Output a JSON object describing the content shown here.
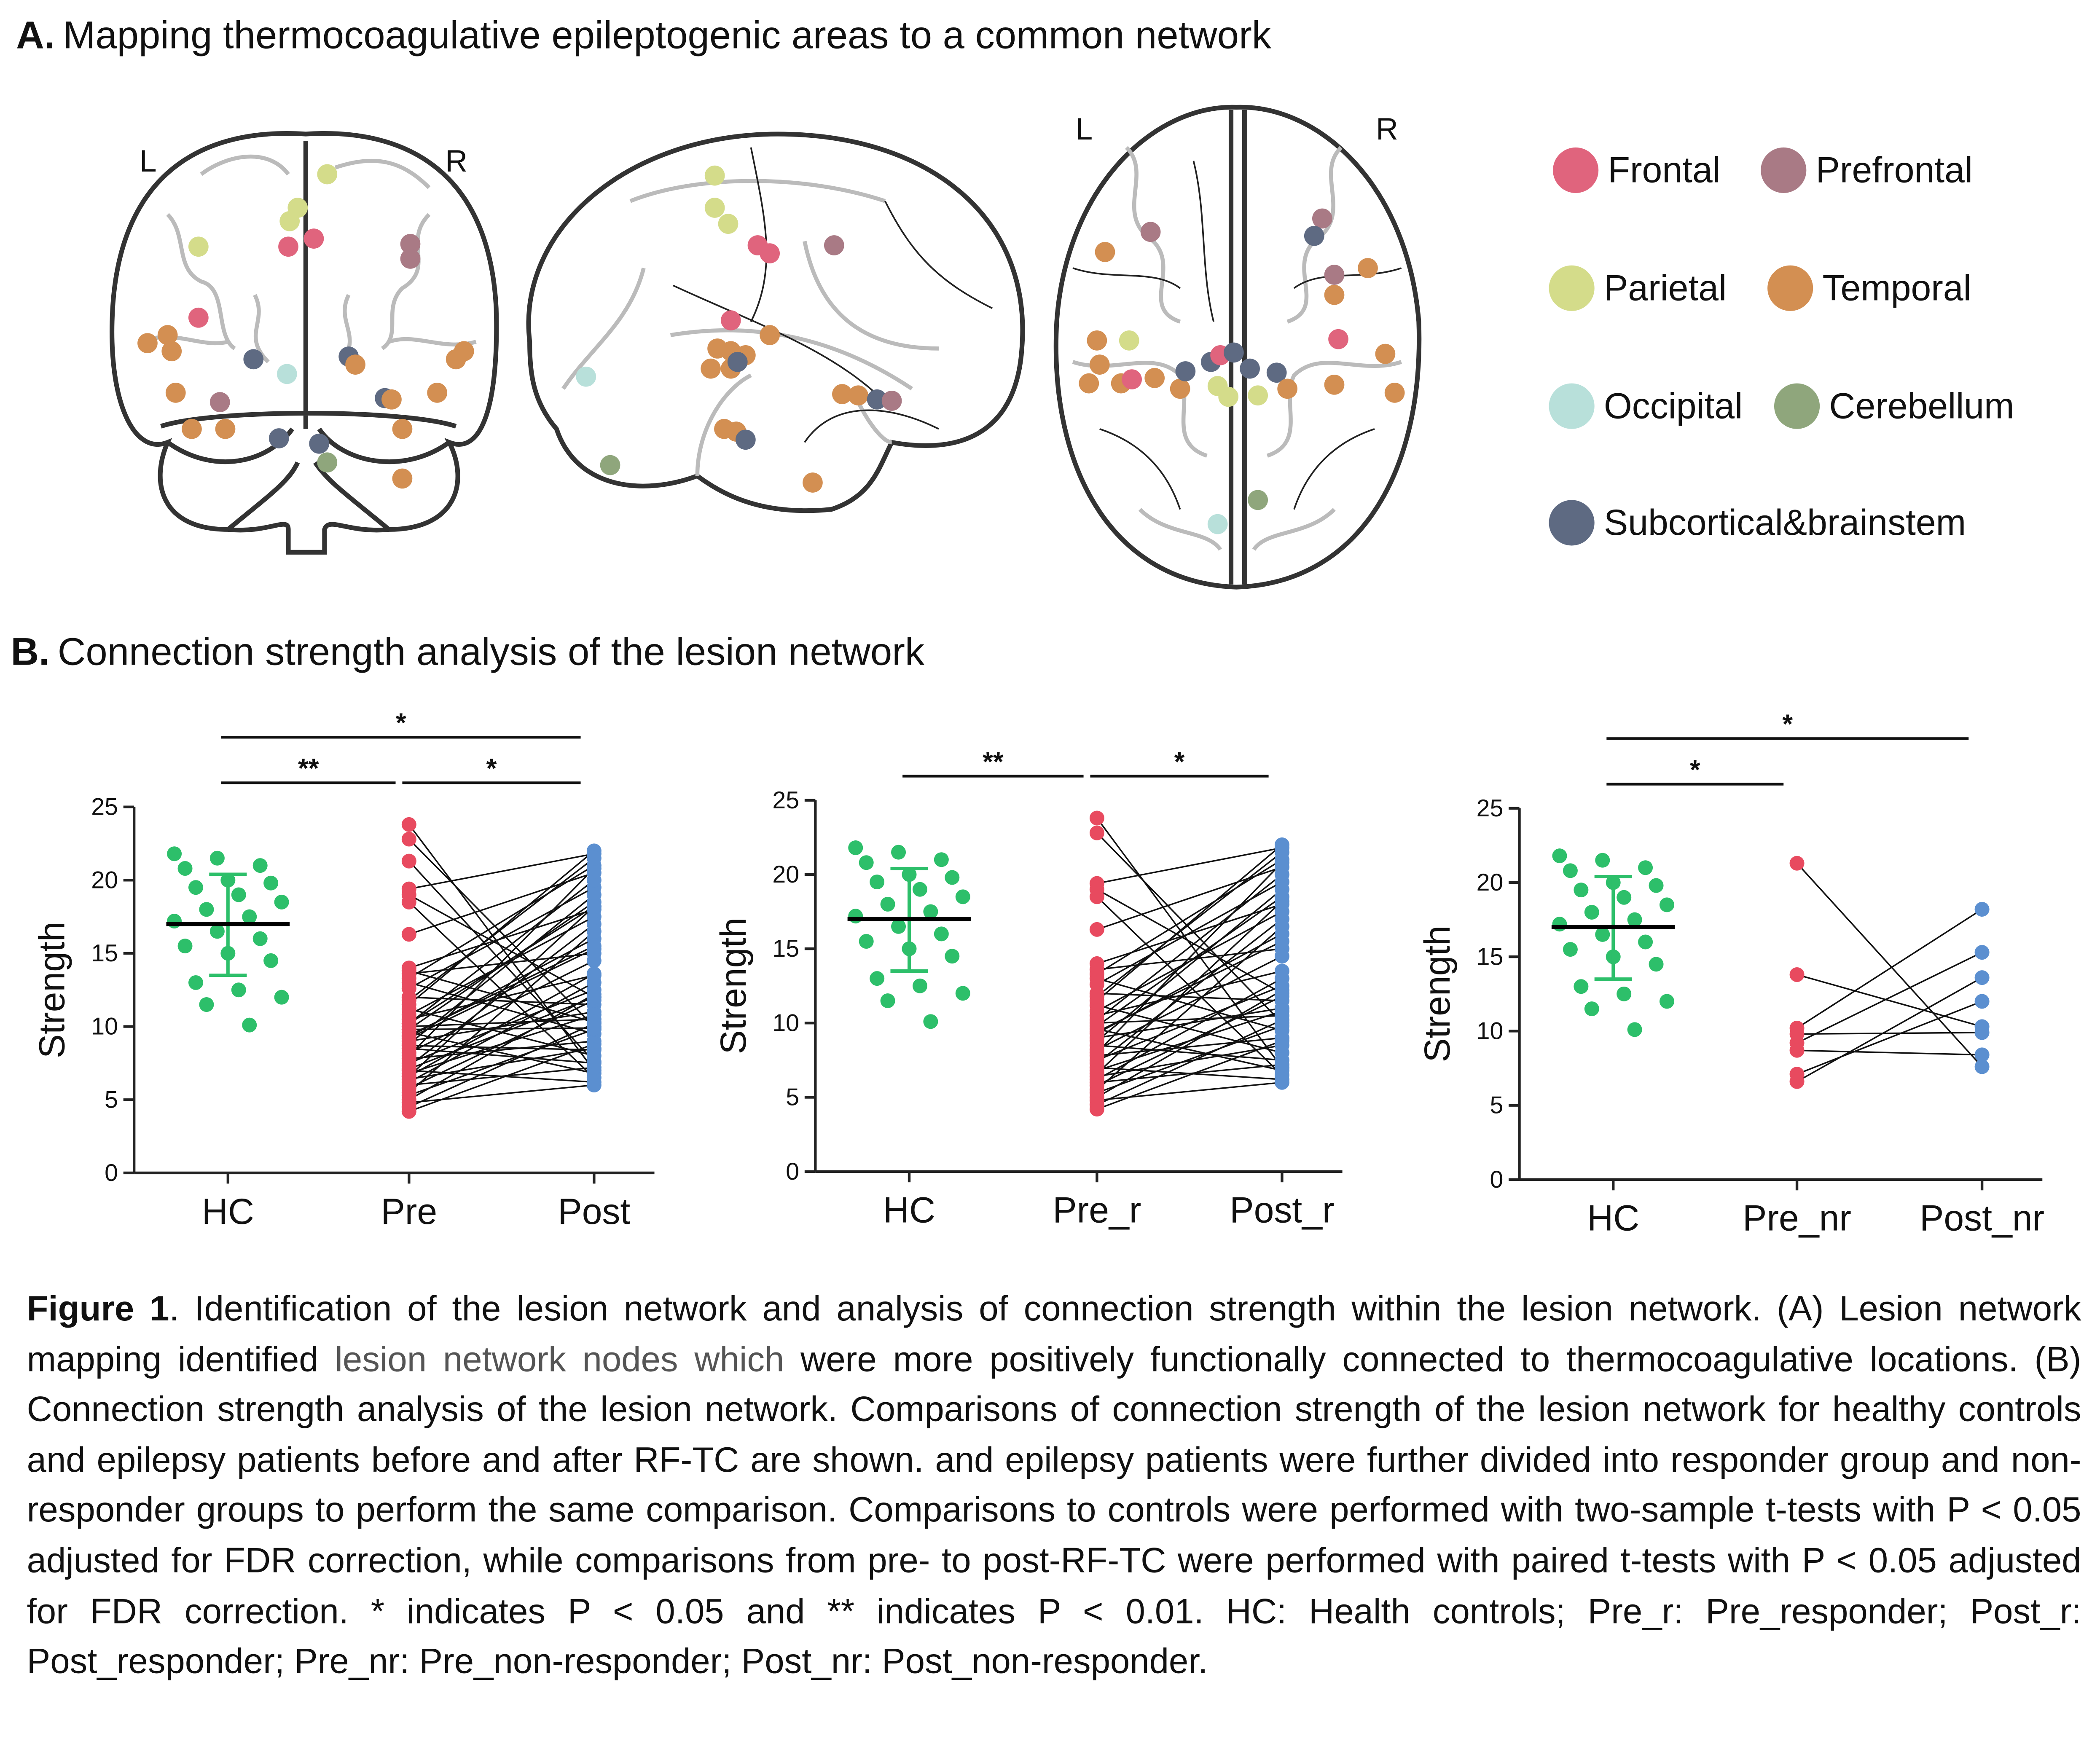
{
  "panel_a": {
    "label": "A.",
    "title": "Mapping thermocoagulative epileptogenic areas to a common network",
    "orientation_labels": [
      "L",
      "R",
      "L",
      "R"
    ],
    "legend": [
      {
        "name": "Frontal",
        "color": "#e0647d"
      },
      {
        "name": "Prefrontal",
        "color": "#a97a85"
      },
      {
        "name": "Parietal",
        "color": "#d4dc8a"
      },
      {
        "name": "Temporal",
        "color": "#d38f52"
      },
      {
        "name": "Occipital",
        "color": "#b8e0da"
      },
      {
        "name": "Cerebellum",
        "color": "#8fa67c"
      },
      {
        "name": "Subcortical&brainstem",
        "color": "#5e6a82"
      }
    ]
  },
  "panel_b": {
    "label": "B.",
    "title": "Connection strength analysis of the lesion network"
  },
  "chart_data": [
    {
      "type": "dotplot",
      "y_label": "Strength",
      "categories": [
        "HC",
        "Pre",
        "Post"
      ],
      "colors": [
        "#2dbf6a",
        "#e84a5f",
        "#5b8fd0"
      ],
      "values": [
        [
          21.8,
          21.5,
          21.0,
          20.8,
          20.0,
          19.8,
          19.5,
          19.0,
          18.5,
          18.0,
          17.5,
          17.2,
          16.5,
          16.0,
          15.5,
          15.0,
          14.5,
          13.0,
          12.5,
          12.0,
          11.5,
          10.1
        ],
        [
          23.8,
          22.8,
          19.4,
          19.0,
          18.5,
          16.3,
          14.0,
          13.6,
          13.3,
          13.0,
          12.6,
          12.0,
          11.5,
          11.2,
          10.8,
          10.5,
          10.2,
          10.0,
          9.8,
          9.6,
          9.3,
          9.0,
          8.8,
          8.5,
          8.2,
          8.0,
          7.8,
          7.5,
          7.3,
          7.0,
          6.8,
          6.6,
          6.4,
          6.2,
          6.0,
          5.8,
          5.5,
          5.3,
          5.0,
          4.8,
          4.5,
          4.2,
          11.8,
          9.4,
          21.3,
          13.8,
          10.2,
          9.8,
          9.2,
          8.7,
          7.1,
          6.6
        ],
        [
          7.0,
          10.0,
          21.8,
          12.0,
          6.5,
          20.5,
          18.0,
          15.0,
          21.0,
          9.5,
          19.5,
          11.5,
          22.0,
          8.0,
          17.5,
          13.5,
          20.0,
          10.5,
          18.5,
          6.8,
          16.0,
          11.0,
          19.0,
          7.5,
          14.5,
          20.8,
          9.0,
          12.5,
          17.0,
          6.2,
          10.8,
          18.2,
          8.5,
          13.0,
          7.2,
          11.8,
          16.5,
          9.8,
          12.2,
          6.0,
          10.2,
          8.8,
          21.5,
          15.5,
          7.6,
          10.3,
          18.2,
          9.9,
          15.3,
          8.4,
          12.0,
          13.6
        ]
      ],
      "paired": [
        1,
        2
      ],
      "mean": 17.0,
      "sd_range": [
        13.5,
        20.4
      ],
      "ylim": [
        0,
        25
      ],
      "yticks": [
        0,
        5,
        10,
        15,
        20,
        25
      ],
      "significance": [
        {
          "from": 0,
          "to": 1,
          "label": "**"
        },
        {
          "from": 1,
          "to": 2,
          "label": "*"
        },
        {
          "from": 0,
          "to": 2,
          "label": "*"
        }
      ]
    },
    {
      "type": "dotplot",
      "y_label": "Strength",
      "categories": [
        "HC",
        "Pre_r",
        "Post_r"
      ],
      "colors": [
        "#2dbf6a",
        "#e84a5f",
        "#5b8fd0"
      ],
      "values": [
        [
          21.8,
          21.5,
          21.0,
          20.8,
          20.0,
          19.8,
          19.5,
          19.0,
          18.5,
          18.0,
          17.5,
          17.2,
          16.5,
          16.0,
          15.5,
          15.0,
          14.5,
          13.0,
          12.5,
          12.0,
          11.5,
          10.1
        ],
        [
          23.8,
          22.8,
          19.4,
          19.0,
          18.5,
          16.3,
          14.0,
          13.6,
          13.3,
          13.0,
          12.6,
          12.0,
          11.5,
          11.2,
          10.8,
          10.5,
          10.2,
          10.0,
          9.8,
          9.6,
          9.3,
          9.0,
          8.8,
          8.5,
          8.2,
          8.0,
          7.8,
          7.5,
          7.3,
          7.0,
          6.8,
          6.6,
          6.4,
          6.2,
          6.0,
          5.8,
          5.5,
          5.3,
          5.0,
          4.8,
          4.5,
          4.2,
          11.8,
          9.4
        ],
        [
          7.0,
          10.0,
          21.8,
          12.0,
          6.5,
          20.5,
          18.0,
          15.0,
          21.0,
          9.5,
          19.5,
          11.5,
          22.0,
          8.0,
          17.5,
          13.5,
          20.0,
          10.5,
          18.5,
          6.8,
          16.0,
          11.0,
          19.0,
          7.5,
          14.5,
          20.8,
          9.0,
          12.5,
          17.0,
          6.2,
          10.8,
          18.2,
          8.5,
          13.0,
          7.2,
          11.8,
          16.5,
          9.8,
          12.2,
          6.0,
          10.2,
          8.8,
          21.5,
          15.5
        ]
      ],
      "paired": [
        1,
        2
      ],
      "mean": 17.0,
      "sd_range": [
        13.5,
        20.4
      ],
      "ylim": [
        0,
        25
      ],
      "yticks": [
        0,
        5,
        10,
        15,
        20,
        25
      ],
      "significance": [
        {
          "from": 0,
          "to": 1,
          "label": "**"
        },
        {
          "from": 1,
          "to": 2,
          "label": "*"
        }
      ]
    },
    {
      "type": "dotplot",
      "y_label": "Strength",
      "categories": [
        "HC",
        "Pre_nr",
        "Post_nr"
      ],
      "colors": [
        "#2dbf6a",
        "#e84a5f",
        "#5b8fd0"
      ],
      "values": [
        [
          21.8,
          21.5,
          21.0,
          20.8,
          20.0,
          19.8,
          19.5,
          19.0,
          18.5,
          18.0,
          17.5,
          17.2,
          16.5,
          16.0,
          15.5,
          15.0,
          14.5,
          13.0,
          12.5,
          12.0,
          11.5,
          10.1
        ],
        [
          21.3,
          13.8,
          10.2,
          9.8,
          9.2,
          8.7,
          7.1,
          6.6
        ],
        [
          7.6,
          10.3,
          18.2,
          9.9,
          15.3,
          8.4,
          12.0,
          13.6
        ]
      ],
      "paired": [
        1,
        2
      ],
      "mean": 17.0,
      "sd_range": [
        13.5,
        20.4
      ],
      "ylim": [
        0,
        25
      ],
      "yticks": [
        0,
        5,
        10,
        15,
        20,
        25
      ],
      "significance": [
        {
          "from": 0,
          "to": 1,
          "label": "*"
        },
        {
          "from": 0,
          "to": 2,
          "label": "*"
        }
      ]
    }
  ],
  "caption": {
    "label": "Figure 1",
    "text1": ". Identification of the lesion network and analysis of connection strength within the lesion network. (A) Lesion network mapping identified ",
    "highlight": "lesion network nodes which",
    "text2": " were more positively functionally connected to thermocoagulative locations. (B) Connection strength analysis of the lesion network. Comparisons of connection strength of the lesion network for healthy controls and epilepsy patients before and after RF-TC are shown. and epilepsy patients were further divided into responder group and non-responder groups to perform the same comparison. Comparisons to controls were performed with two-sample t-tests with P < 0.05 adjusted for FDR correction, while comparisons from pre- to post-RF-TC were performed with paired t-tests with P < 0.05 adjusted for FDR correction. * indicates P < 0.05 and ** indicates P < 0.01. HC: Health controls; Pre_r: Pre_responder; Post_r: Post_responder; Pre_nr: Pre_non-responder; Post_nr: Post_non-responder."
  }
}
